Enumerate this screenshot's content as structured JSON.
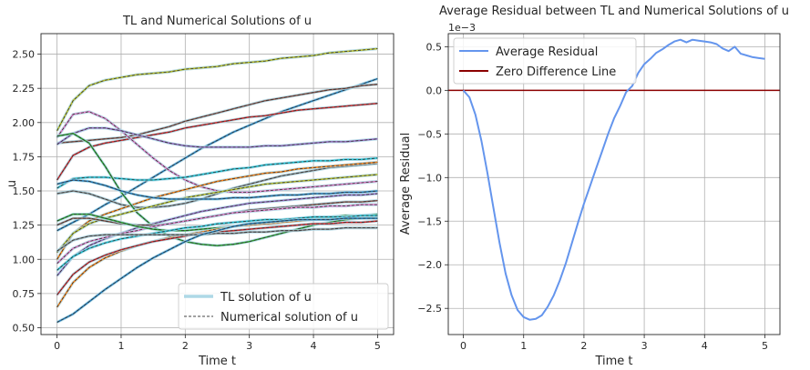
{
  "chart_data": [
    {
      "type": "line",
      "title": "TL and Numerical Solutions of u",
      "xlabel": "Time t",
      "ylabel": "u",
      "xlim": [
        -0.25,
        5.25
      ],
      "ylim": [
        0.45,
        2.65
      ],
      "xticks": [
        0,
        1,
        2,
        3,
        4,
        5
      ],
      "yticks": [
        0.5,
        0.75,
        1.0,
        1.25,
        1.5,
        1.75,
        2.0,
        2.25,
        2.5
      ],
      "xtick_labels": [
        "0",
        "1",
        "2",
        "3",
        "4",
        "5"
      ],
      "ytick_labels": [
        "0.50",
        "0.75",
        "1.00",
        "1.25",
        "1.50",
        "1.75",
        "2.00",
        "2.25",
        "2.50"
      ],
      "grid": true,
      "legend_position": "lower-right",
      "legend": [
        {
          "label": "TL solution of u",
          "style": "thick-light-blue"
        },
        {
          "label": "Numerical solution of u",
          "style": "thin-dashed-dark"
        }
      ],
      "x": [
        0,
        0.25,
        0.5,
        0.75,
        1,
        1.25,
        1.5,
        1.75,
        2,
        2.25,
        2.5,
        2.75,
        3,
        3.25,
        3.5,
        3.75,
        4,
        4.25,
        4.5,
        4.75,
        5
      ],
      "series": [
        {
          "color": "#bcbd22",
          "values": [
            1.94,
            2.16,
            2.27,
            2.31,
            2.33,
            2.35,
            2.36,
            2.37,
            2.39,
            2.4,
            2.41,
            2.43,
            2.44,
            2.45,
            2.47,
            2.48,
            2.49,
            2.51,
            2.52,
            2.53,
            2.54
          ]
        },
        {
          "color": "#1f77b4",
          "values": [
            1.21,
            1.27,
            1.33,
            1.4,
            1.46,
            1.53,
            1.6,
            1.67,
            1.74,
            1.81,
            1.87,
            1.93,
            1.98,
            2.03,
            2.08,
            2.12,
            2.16,
            2.2,
            2.24,
            2.28,
            2.32
          ]
        },
        {
          "color": "#8c564b",
          "values": [
            1.85,
            1.86,
            1.87,
            1.88,
            1.89,
            1.91,
            1.94,
            1.97,
            2.01,
            2.04,
            2.07,
            2.1,
            2.13,
            2.16,
            2.18,
            2.2,
            2.22,
            2.24,
            2.25,
            2.27,
            2.28
          ]
        },
        {
          "color": "#d62728",
          "values": [
            1.58,
            1.76,
            1.82,
            1.85,
            1.87,
            1.89,
            1.91,
            1.93,
            1.96,
            1.98,
            2.0,
            2.02,
            2.04,
            2.05,
            2.07,
            2.09,
            2.1,
            2.11,
            2.12,
            2.13,
            2.14
          ]
        },
        {
          "color": "#e377c2",
          "values": [
            1.89,
            2.06,
            2.08,
            2.03,
            1.94,
            1.84,
            1.74,
            1.65,
            1.58,
            1.53,
            1.5,
            1.49,
            1.49,
            1.5,
            1.51,
            1.52,
            1.53,
            1.54,
            1.55,
            1.56,
            1.57
          ]
        },
        {
          "color": "#9467bd",
          "values": [
            1.84,
            1.92,
            1.96,
            1.96,
            1.94,
            1.91,
            1.88,
            1.85,
            1.83,
            1.82,
            1.82,
            1.82,
            1.82,
            1.83,
            1.83,
            1.84,
            1.85,
            1.86,
            1.86,
            1.87,
            1.88
          ]
        },
        {
          "color": "#17becf",
          "values": [
            1.52,
            1.59,
            1.6,
            1.6,
            1.59,
            1.58,
            1.58,
            1.59,
            1.6,
            1.62,
            1.64,
            1.66,
            1.67,
            1.69,
            1.7,
            1.71,
            1.72,
            1.72,
            1.73,
            1.73,
            1.74
          ]
        },
        {
          "color": "#7f7f7f",
          "values": [
            1.48,
            1.5,
            1.48,
            1.44,
            1.4,
            1.38,
            1.38,
            1.39,
            1.41,
            1.44,
            1.48,
            1.52,
            1.55,
            1.58,
            1.61,
            1.63,
            1.65,
            1.67,
            1.68,
            1.69,
            1.7
          ]
        },
        {
          "color": "#ff7f0e",
          "values": [
            1.0,
            1.19,
            1.28,
            1.33,
            1.37,
            1.41,
            1.45,
            1.48,
            1.51,
            1.54,
            1.57,
            1.59,
            1.61,
            1.63,
            1.64,
            1.66,
            1.67,
            1.68,
            1.69,
            1.7,
            1.71
          ]
        },
        {
          "color": "#2ca02c",
          "values": [
            1.9,
            1.92,
            1.85,
            1.68,
            1.49,
            1.34,
            1.24,
            1.17,
            1.13,
            1.11,
            1.1,
            1.11,
            1.13,
            1.16,
            1.19,
            1.22,
            1.25,
            1.27,
            1.29,
            1.3,
            1.31
          ]
        },
        {
          "color": "#bcbd22",
          "values": [
            1.05,
            1.19,
            1.26,
            1.3,
            1.33,
            1.36,
            1.39,
            1.42,
            1.45,
            1.47,
            1.49,
            1.51,
            1.53,
            1.55,
            1.56,
            1.57,
            1.58,
            1.59,
            1.6,
            1.61,
            1.62
          ]
        },
        {
          "color": "#1f77b4",
          "values": [
            1.55,
            1.58,
            1.57,
            1.54,
            1.5,
            1.47,
            1.45,
            1.44,
            1.44,
            1.44,
            1.44,
            1.45,
            1.45,
            1.46,
            1.47,
            1.47,
            1.48,
            1.48,
            1.49,
            1.49,
            1.5
          ]
        },
        {
          "color": "#9467bd",
          "values": [
            0.88,
            1.02,
            1.1,
            1.15,
            1.19,
            1.23,
            1.26,
            1.29,
            1.32,
            1.35,
            1.37,
            1.39,
            1.41,
            1.42,
            1.43,
            1.44,
            1.45,
            1.46,
            1.47,
            1.47,
            1.48
          ]
        },
        {
          "color": "#8c564b",
          "values": [
            1.25,
            1.3,
            1.3,
            1.28,
            1.26,
            1.25,
            1.25,
            1.26,
            1.28,
            1.3,
            1.32,
            1.34,
            1.36,
            1.37,
            1.38,
            1.39,
            1.4,
            1.41,
            1.42,
            1.42,
            1.43
          ]
        },
        {
          "color": "#e377c2",
          "values": [
            0.97,
            1.08,
            1.13,
            1.16,
            1.19,
            1.21,
            1.24,
            1.26,
            1.28,
            1.3,
            1.32,
            1.34,
            1.35,
            1.36,
            1.37,
            1.38,
            1.38,
            1.39,
            1.39,
            1.4,
            1.4
          ]
        },
        {
          "color": "#2ca02c",
          "values": [
            1.28,
            1.33,
            1.33,
            1.3,
            1.27,
            1.24,
            1.22,
            1.21,
            1.21,
            1.22,
            1.23,
            1.24,
            1.26,
            1.27,
            1.28,
            1.29,
            1.3,
            1.31,
            1.32,
            1.32,
            1.33
          ]
        },
        {
          "color": "#ff7f0e",
          "values": [
            0.65,
            0.83,
            0.94,
            1.01,
            1.06,
            1.1,
            1.13,
            1.16,
            1.18,
            1.2,
            1.22,
            1.24,
            1.25,
            1.26,
            1.27,
            1.28,
            1.29,
            1.3,
            1.31,
            1.32,
            1.32
          ]
        },
        {
          "color": "#17becf",
          "values": [
            0.92,
            1.02,
            1.08,
            1.12,
            1.15,
            1.17,
            1.19,
            1.21,
            1.23,
            1.24,
            1.26,
            1.27,
            1.28,
            1.29,
            1.29,
            1.3,
            1.31,
            1.31,
            1.31,
            1.32,
            1.32
          ]
        },
        {
          "color": "#d62728",
          "values": [
            0.74,
            0.89,
            0.98,
            1.03,
            1.07,
            1.1,
            1.13,
            1.15,
            1.17,
            1.19,
            1.2,
            1.21,
            1.22,
            1.23,
            1.24,
            1.25,
            1.26,
            1.26,
            1.27,
            1.27,
            1.28
          ]
        },
        {
          "color": "#7f7f7f",
          "values": [
            1.06,
            1.14,
            1.17,
            1.18,
            1.18,
            1.18,
            1.18,
            1.18,
            1.18,
            1.18,
            1.19,
            1.19,
            1.2,
            1.2,
            1.21,
            1.21,
            1.22,
            1.22,
            1.23,
            1.23,
            1.23
          ]
        },
        {
          "color": "#1f77b4",
          "values": [
            0.54,
            0.6,
            0.69,
            0.78,
            0.86,
            0.94,
            1.01,
            1.07,
            1.13,
            1.18,
            1.21,
            1.24,
            1.26,
            1.27,
            1.28,
            1.29,
            1.29,
            1.29,
            1.3,
            1.3,
            1.3
          ]
        }
      ]
    },
    {
      "type": "line",
      "title": "Average Residual between TL and Numerical Solutions of u",
      "xlabel": "Time t",
      "ylabel": "Average Residual",
      "y_scale_label": "1e−3",
      "xlim": [
        -0.25,
        5.25
      ],
      "ylim": [
        -2.8,
        0.65
      ],
      "xticks": [
        0,
        1,
        2,
        3,
        4,
        5
      ],
      "yticks": [
        -2.5,
        -2.0,
        -1.5,
        -1.0,
        -0.5,
        0.0,
        0.5
      ],
      "xtick_labels": [
        "0",
        "1",
        "2",
        "3",
        "4",
        "5"
      ],
      "ytick_labels": [
        "−2.5",
        "−2.0",
        "−1.5",
        "−1.0",
        "−0.5",
        "0.0",
        "0.5"
      ],
      "grid": true,
      "legend_position": "upper-left",
      "legend": [
        {
          "label": "Average Residual",
          "color": "#6495ed"
        },
        {
          "label": "Zero Difference Line",
          "color": "#8b0000"
        }
      ],
      "zero_line": {
        "y": 0.0,
        "color": "#8b0000"
      },
      "series": [
        {
          "name": "Average Residual",
          "color": "#6495ed",
          "x": [
            0,
            0.1,
            0.2,
            0.3,
            0.4,
            0.5,
            0.6,
            0.7,
            0.8,
            0.9,
            1.0,
            1.1,
            1.2,
            1.3,
            1.4,
            1.5,
            1.6,
            1.7,
            1.8,
            1.9,
            2.0,
            2.1,
            2.2,
            2.3,
            2.4,
            2.5,
            2.6,
            2.7,
            2.8,
            2.9,
            3.0,
            3.1,
            3.2,
            3.3,
            3.4,
            3.5,
            3.6,
            3.7,
            3.8,
            3.9,
            4.0,
            4.1,
            4.2,
            4.3,
            4.4,
            4.5,
            4.6,
            4.7,
            4.8,
            4.9,
            5.0
          ],
          "values": [
            0.0,
            -0.08,
            -0.28,
            -0.58,
            -0.95,
            -1.35,
            -1.75,
            -2.1,
            -2.35,
            -2.52,
            -2.6,
            -2.63,
            -2.62,
            -2.58,
            -2.48,
            -2.35,
            -2.18,
            -1.98,
            -1.75,
            -1.52,
            -1.3,
            -1.1,
            -0.9,
            -0.7,
            -0.5,
            -0.32,
            -0.18,
            -0.02,
            0.05,
            0.2,
            0.3,
            0.36,
            0.43,
            0.47,
            0.52,
            0.56,
            0.58,
            0.55,
            0.58,
            0.57,
            0.56,
            0.55,
            0.53,
            0.48,
            0.45,
            0.5,
            0.42,
            0.4,
            0.38,
            0.37,
            0.36
          ]
        }
      ]
    }
  ]
}
